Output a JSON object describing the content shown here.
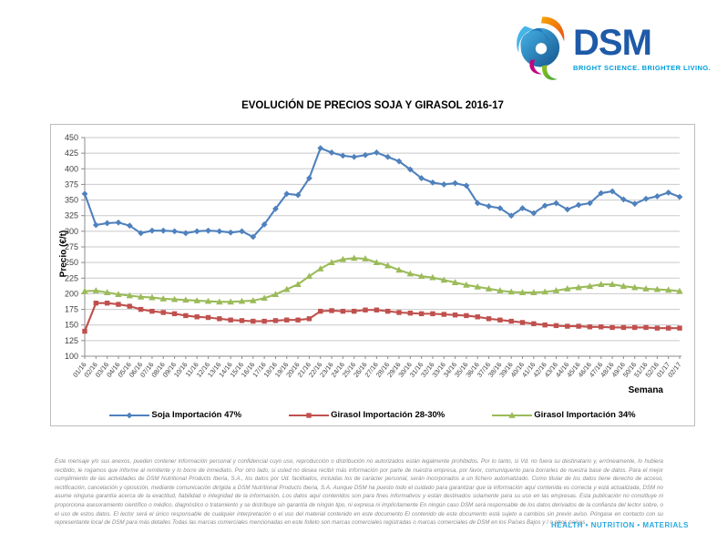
{
  "logo": {
    "name": "DSM",
    "tagline": "BRIGHT SCIENCE. BRIGHTER LIVING.",
    "brand_blue": "#1E5AA8",
    "tagline_blue": "#009EDB"
  },
  "chart_data": {
    "type": "line",
    "title": "EVOLUCIÓN DE PRECIOS SOJA Y GIRASOL 2016-17",
    "xlabel": "Semana",
    "ylabel": "Precio (€/t)",
    "ylim": [
      100,
      450
    ],
    "ytick_step": 25,
    "grid": true,
    "legend_position": "bottom",
    "gridline_color": "#C9C9C9",
    "axis_color": "#8C8C8C",
    "categories": [
      "01/16",
      "02/16",
      "03/16",
      "04/16",
      "05/16",
      "06/16",
      "07/16",
      "08/16",
      "09/16",
      "10/16",
      "11/16",
      "12/16",
      "13/16",
      "14/16",
      "15/16",
      "16/16",
      "17/16",
      "18/16",
      "19/16",
      "20/16",
      "21/16",
      "22/16",
      "23/16",
      "24/16",
      "25/16",
      "26/16",
      "27/16",
      "28/16",
      "29/16",
      "30/16",
      "31/16",
      "32/16",
      "33/16",
      "34/16",
      "35/16",
      "36/16",
      "37/16",
      "38/16",
      "39/16",
      "40/16",
      "41/16",
      "42/16",
      "43/16",
      "44/16",
      "45/16",
      "46/16",
      "47/16",
      "48/16",
      "49/16",
      "50/16",
      "51/16",
      "52/16",
      "01/17",
      "02/17"
    ],
    "series": [
      {
        "name": "Soja Importación 47%",
        "color": "#4F81BD",
        "marker": "diamond",
        "values": [
          360,
          310,
          313,
          314,
          309,
          297,
          301,
          301,
          300,
          297,
          300,
          301,
          300,
          298,
          300,
          291,
          311,
          336,
          360,
          358,
          385,
          433,
          426,
          421,
          419,
          422,
          426,
          419,
          412,
          399,
          385,
          378,
          375,
          377,
          373,
          345,
          340,
          337,
          325,
          337,
          329,
          341,
          345,
          335,
          342,
          345,
          361,
          364,
          351,
          344,
          352,
          356,
          362,
          355
        ]
      },
      {
        "name": "Girasol Importación 28-30%",
        "color": "#C0504D",
        "marker": "square",
        "values": [
          140,
          185,
          185,
          183,
          180,
          175,
          172,
          170,
          168,
          165,
          163,
          162,
          160,
          158,
          157,
          156,
          156,
          157,
          158,
          158,
          160,
          172,
          173,
          172,
          172,
          174,
          174,
          172,
          170,
          169,
          168,
          168,
          167,
          166,
          165,
          163,
          160,
          158,
          156,
          154,
          152,
          150,
          149,
          148,
          148,
          147,
          147,
          146,
          146,
          146,
          146,
          145,
          145,
          145
        ]
      },
      {
        "name": "Girasol Importación 34%",
        "color": "#9BBB59",
        "marker": "triangle",
        "values": [
          204,
          205,
          202,
          199,
          197,
          195,
          194,
          192,
          191,
          190,
          189,
          188,
          187,
          187,
          188,
          189,
          193,
          199,
          207,
          215,
          228,
          240,
          250,
          255,
          257,
          256,
          250,
          245,
          238,
          232,
          228,
          226,
          222,
          218,
          214,
          211,
          208,
          205,
          203,
          202,
          202,
          203,
          205,
          208,
          210,
          212,
          215,
          215,
          212,
          210,
          208,
          207,
          206,
          204
        ]
      }
    ]
  },
  "footer": {
    "disclaimer": "Este mensaje y/o sus anexos, pueden contener información personal y confidencial cuyo uso, reproducción o distribución no autorizados están legalmente prohibidos. Por lo tanto, si Vd. no fuera su destinatario y, erróneamente, lo hubiera recibido, le rogamos que informe al remitente y lo borre de inmediato. Por otro lado, si usted no desea recibir más información por parte de nuestra empresa, por favor, comuníquenlo para borrarles de nuestra base de datos. Para el mejor cumplimiento de las actividades de DSM Nutritional Products Iberia, S.A., los datos por Ud. facilitados, incluidas los de carácter personal, serán incorporados a un fichero automatizado. Como titular de los datos tiene derecho de acceso, rectificación, cancelación y oposición, mediante comunicación dirigida a DSM Nutritional Products Iberia, S.A. Aunque DSM ha puesto todo el cuidado para garantizar que la información aquí contenida es correcta y está actualizada, DSM no asume ninguna garantía acerca de la exactitud, fiabilidad o integridad de la información. Los datos aquí contenidos son para fines informativos y están destinados solamente para su uso en las empresas. Esta publicación no constituye ni proporciona asesoramiento científico o médico, diagnóstico o tratamiento y se distribuye sin garantía de ningún tipo, ni expresa ni implícitamente En ningún caso DSM será responsable de los datos derivados de la confianza del lector sobre, o el uso de estos datos. El lector será el único responsable de cualquier interpretación o el uso del material contenido en este documento El contenido de este documento está sujeto a cambios sin previo aviso. Póngase en contacto con su representante local de DSM para más detalles Todas las marcas comerciales mencionadas en este folleto son marcas comerciales registradas o marcas comerciales de DSM en los Países Bajos y / o otros países.",
    "brandline": "HEALTH • NUTRITION • MATERIALS"
  }
}
